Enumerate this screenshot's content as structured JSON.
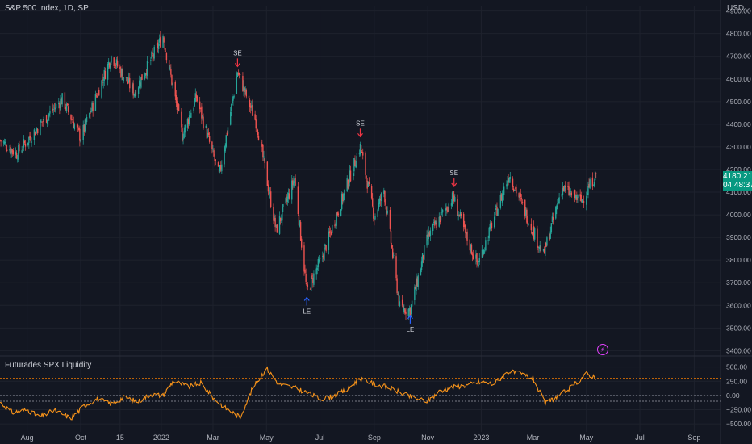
{
  "header": {
    "symbol_title": "S&P 500 Index, 1D, SP",
    "currency": "USD"
  },
  "last_price": {
    "value": "4180.21",
    "countdown": "04:48:37"
  },
  "indicator": {
    "title": "Futurades SPX Liquidity"
  },
  "colors": {
    "background": "#131722",
    "up": "#26a69a",
    "down": "#ef5350",
    "indicator_line": "#f7931a",
    "upper_band": "#f57c00",
    "lower_band": "#787b86",
    "grid": "#1e222d",
    "badge": "#089981",
    "short_arrow": "#f23645",
    "long_arrow": "#2962ff"
  },
  "chart_data": [
    {
      "type": "candlestick",
      "title": "S&P 500 Index, 1D, SP",
      "y_axis_ticks": [
        "4900.00",
        "4800.00",
        "4700.00",
        "4600.00",
        "4500.00",
        "4400.00",
        "4300.00",
        "4200.00",
        "4100.00",
        "4000.00",
        "3900.00",
        "3800.00",
        "3700.00",
        "3600.00",
        "3500.00",
        "3400.00"
      ],
      "ylim": [
        3380,
        4920
      ],
      "x_tick_labels": [
        "Aug",
        "Oct",
        "15",
        "2022",
        "Mar",
        "May",
        "Jul",
        "Sep",
        "Nov",
        "2023",
        "Mar",
        "May",
        "Jul",
        "Sep"
      ],
      "close_path": {
        "dates": [
          "2021-07-01",
          "2021-07-20",
          "2021-08-20",
          "2021-09-10",
          "2021-10-01",
          "2021-11-05",
          "2021-12-01",
          "2022-01-03",
          "2022-01-25",
          "2022-02-10",
          "2022-03-08",
          "2022-03-29",
          "2022-04-20",
          "2022-05-12",
          "2022-06-02",
          "2022-06-16",
          "2022-07-05",
          "2022-08-16",
          "2022-09-01",
          "2022-09-12",
          "2022-09-30",
          "2022-10-12",
          "2022-11-01",
          "2022-11-30",
          "2022-12-15",
          "2022-12-28",
          "2023-02-02",
          "2023-03-13",
          "2023-04-03",
          "2023-04-25",
          "2023-05-12"
        ],
        "closes": [
          4330,
          4270,
          4420,
          4510,
          4340,
          4700,
          4540,
          4790,
          4350,
          4520,
          4170,
          4630,
          4400,
          3930,
          4160,
          3660,
          3830,
          4300,
          3990,
          4110,
          3590,
          3580,
          3900,
          4080,
          3900,
          3780,
          4180,
          3820,
          4120,
          4060,
          4180
        ]
      },
      "annotations": [
        {
          "label": "SE",
          "type": "short",
          "date": "2022-03-29",
          "price": 4630
        },
        {
          "label": "LE",
          "type": "long",
          "date": "2022-06-16",
          "price": 3660
        },
        {
          "label": "SE",
          "type": "short",
          "date": "2022-08-16",
          "price": 4320
        },
        {
          "label": "LE",
          "type": "long",
          "date": "2022-10-12",
          "price": 3580
        },
        {
          "label": "SE",
          "type": "short",
          "date": "2022-12-01",
          "price": 4100
        }
      ],
      "last_price": 4180.21
    },
    {
      "type": "line",
      "title": "Futurades SPX Liquidity",
      "y_axis_ticks": [
        "500.00",
        "250.00",
        "0.00",
        "−250.00",
        "−500.00"
      ],
      "ylim": [
        -640,
        680
      ],
      "reference_lines": [
        {
          "name": "upper",
          "value": 300
        },
        {
          "name": "zero",
          "value": 0
        },
        {
          "name": "lower",
          "value": -100
        }
      ],
      "series": [
        {
          "dates": [
            "2021-07-01",
            "2021-07-15",
            "2021-08-01",
            "2021-08-15",
            "2021-09-01",
            "2021-09-20",
            "2021-10-05",
            "2021-10-20",
            "2021-11-05",
            "2021-11-20",
            "2021-12-05",
            "2021-12-20",
            "2022-01-03",
            "2022-01-15",
            "2022-02-01",
            "2022-02-15",
            "2022-03-01",
            "2022-03-15",
            "2022-04-01",
            "2022-04-15",
            "2022-05-01",
            "2022-05-15",
            "2022-06-01",
            "2022-06-15",
            "2022-07-01",
            "2022-07-15",
            "2022-08-01",
            "2022-08-15",
            "2022-09-01",
            "2022-09-15",
            "2022-10-01",
            "2022-10-15",
            "2022-11-01",
            "2022-11-15",
            "2022-12-01",
            "2022-12-15",
            "2023-01-01",
            "2023-01-15",
            "2023-02-01",
            "2023-02-15",
            "2023-03-01",
            "2023-03-15",
            "2023-04-01",
            "2023-04-15",
            "2023-05-01",
            "2023-05-12"
          ],
          "values": [
            -120,
            -300,
            -250,
            -380,
            -260,
            -400,
            -180,
            -60,
            -150,
            -30,
            -110,
            20,
            0,
            260,
            150,
            220,
            -40,
            -220,
            -380,
            120,
            480,
            200,
            140,
            60,
            -60,
            -20,
            100,
            300,
            200,
            150,
            50,
            -40,
            -100,
            80,
            150,
            180,
            240,
            200,
            420,
            380,
            300,
            -140,
            10,
            160,
            380,
            320
          ]
        }
      ]
    }
  ]
}
